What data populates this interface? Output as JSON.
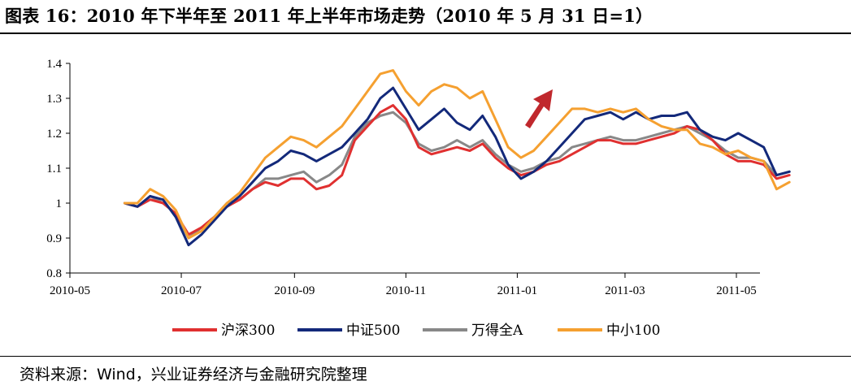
{
  "title": "图表 16：2010 年下半年至 2011 年上半年市场走势（2010 年 5 月 31 日=1）",
  "source": "资料来源：Wind，兴业证券经济与金融研究院整理",
  "chart_data": {
    "type": "line",
    "ylim": [
      0.8,
      1.4
    ],
    "yticks": [
      "0.8",
      "0.9",
      "1",
      "1.1",
      "1.2",
      "1.3",
      "1.4"
    ],
    "xticks": [
      "2010-05",
      "2010-07",
      "2010-09",
      "2010-11",
      "2011-01",
      "2011-03",
      "2011-05"
    ],
    "x": [
      "2010-05-31",
      "2010-06-07",
      "2010-06-14",
      "2010-06-21",
      "2010-06-28",
      "2010-07-05",
      "2010-07-12",
      "2010-07-19",
      "2010-07-26",
      "2010-08-02",
      "2010-08-09",
      "2010-08-16",
      "2010-08-23",
      "2010-08-30",
      "2010-09-06",
      "2010-09-13",
      "2010-09-20",
      "2010-09-27",
      "2010-10-04",
      "2010-10-11",
      "2010-10-18",
      "2010-10-25",
      "2010-11-01",
      "2010-11-08",
      "2010-11-15",
      "2010-11-22",
      "2010-11-29",
      "2010-12-06",
      "2010-12-13",
      "2010-12-20",
      "2010-12-27",
      "2011-01-03",
      "2011-01-10",
      "2011-01-17",
      "2011-01-24",
      "2011-01-31",
      "2011-02-07",
      "2011-02-14",
      "2011-02-21",
      "2011-02-28",
      "2011-03-07",
      "2011-03-14",
      "2011-03-21",
      "2011-03-28",
      "2011-04-04",
      "2011-04-11",
      "2011-04-18",
      "2011-04-25",
      "2011-05-02",
      "2011-05-09",
      "2011-05-16",
      "2011-05-23",
      "2011-05-30"
    ],
    "series": [
      {
        "name": "沪深300",
        "color": "#e03030",
        "values": [
          1.0,
          0.99,
          1.01,
          1.0,
          0.97,
          0.91,
          0.93,
          0.96,
          0.99,
          1.01,
          1.04,
          1.06,
          1.05,
          1.07,
          1.07,
          1.04,
          1.05,
          1.08,
          1.18,
          1.22,
          1.26,
          1.28,
          1.24,
          1.16,
          1.14,
          1.15,
          1.16,
          1.15,
          1.17,
          1.13,
          1.1,
          1.08,
          1.09,
          1.11,
          1.12,
          1.14,
          1.16,
          1.18,
          1.18,
          1.17,
          1.17,
          1.18,
          1.19,
          1.2,
          1.22,
          1.21,
          1.18,
          1.14,
          1.12,
          1.12,
          1.11,
          1.07,
          1.08
        ]
      },
      {
        "name": "中证500",
        "color": "#13297a",
        "values": [
          1.0,
          0.99,
          1.02,
          1.01,
          0.96,
          0.88,
          0.91,
          0.95,
          0.99,
          1.02,
          1.06,
          1.1,
          1.12,
          1.15,
          1.14,
          1.12,
          1.14,
          1.16,
          1.2,
          1.24,
          1.3,
          1.33,
          1.27,
          1.21,
          1.24,
          1.27,
          1.23,
          1.21,
          1.25,
          1.19,
          1.11,
          1.07,
          1.09,
          1.12,
          1.16,
          1.2,
          1.24,
          1.25,
          1.26,
          1.24,
          1.26,
          1.24,
          1.25,
          1.25,
          1.26,
          1.21,
          1.19,
          1.18,
          1.2,
          1.18,
          1.16,
          1.08,
          1.09
        ]
      },
      {
        "name": "万得全A",
        "color": "#888888",
        "values": [
          1.0,
          0.99,
          1.02,
          1.0,
          0.97,
          0.9,
          0.93,
          0.96,
          1.0,
          1.01,
          1.04,
          1.07,
          1.07,
          1.08,
          1.09,
          1.06,
          1.08,
          1.11,
          1.19,
          1.23,
          1.25,
          1.26,
          1.23,
          1.17,
          1.15,
          1.16,
          1.18,
          1.16,
          1.18,
          1.14,
          1.11,
          1.09,
          1.1,
          1.12,
          1.13,
          1.16,
          1.17,
          1.18,
          1.19,
          1.18,
          1.18,
          1.19,
          1.2,
          1.21,
          1.22,
          1.2,
          1.18,
          1.15,
          1.13,
          1.13,
          1.12,
          1.08,
          1.09
        ]
      },
      {
        "name": "中小100",
        "color": "#f5a030",
        "values": [
          1.0,
          1.0,
          1.04,
          1.02,
          0.98,
          0.9,
          0.92,
          0.96,
          1.0,
          1.03,
          1.08,
          1.13,
          1.16,
          1.19,
          1.18,
          1.16,
          1.19,
          1.22,
          1.27,
          1.32,
          1.37,
          1.38,
          1.32,
          1.28,
          1.32,
          1.34,
          1.33,
          1.3,
          1.32,
          1.24,
          1.16,
          1.13,
          1.15,
          1.19,
          1.23,
          1.27,
          1.27,
          1.26,
          1.27,
          1.26,
          1.27,
          1.24,
          1.22,
          1.21,
          1.21,
          1.17,
          1.16,
          1.14,
          1.15,
          1.13,
          1.12,
          1.04,
          1.06
        ]
      }
    ]
  }
}
